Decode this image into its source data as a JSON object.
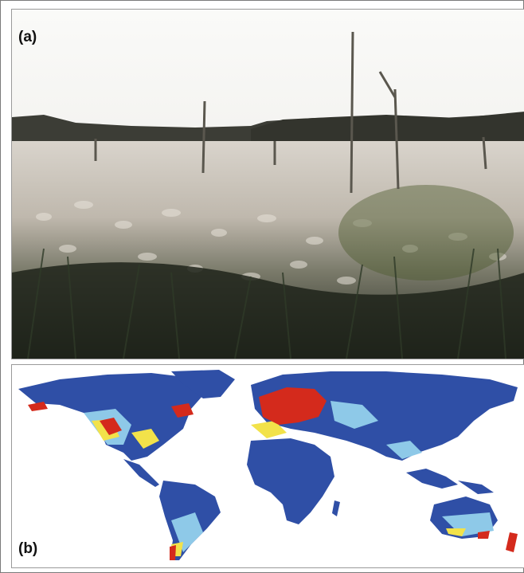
{
  "figure": {
    "panel_a": {
      "label": "(a)"
    },
    "panel_b": {
      "label": "(b)"
    }
  },
  "colors": {
    "sky": "#f2f1ef",
    "treeline": "#3b3b36",
    "reeds_light": "#cfc8bf",
    "reeds_dark": "#2b3126",
    "ocean_land_low": "#2f4fa6",
    "suitability_low": "#8ec9e8",
    "suitability_mid": "#f2e24a",
    "suitability_high": "#d42a1c"
  },
  "icons": [
    "photograph-wetland",
    "world-map"
  ]
}
